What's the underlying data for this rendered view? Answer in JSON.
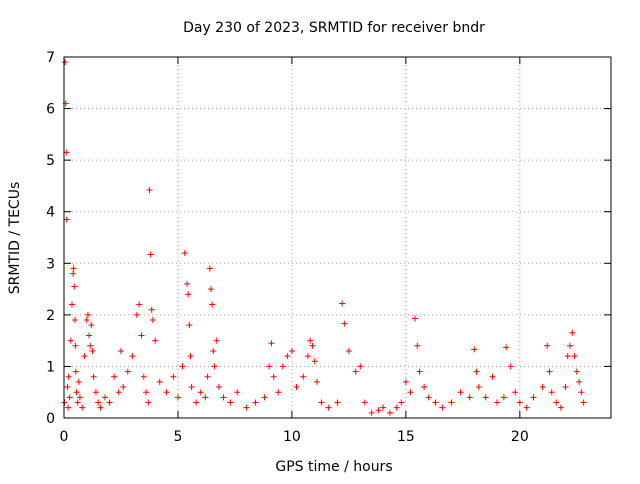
{
  "chart_data": {
    "type": "scatter",
    "title": "Day 230 of 2023, SRMTID for receiver bndr",
    "xlabel": "GPS time / hours",
    "ylabel": "SRMTID / TECUs",
    "xlim": [
      0,
      24
    ],
    "ylim": [
      0,
      7
    ],
    "xticks": [
      0,
      5,
      10,
      15,
      20
    ],
    "xtick_labels": [
      "0",
      "5",
      "10",
      "15",
      "20"
    ],
    "yticks": [
      0,
      1,
      2,
      3,
      4,
      5,
      6,
      7
    ],
    "ytick_labels": [
      "0",
      "1",
      "2",
      "3",
      "4",
      "5",
      "6",
      "7"
    ],
    "grid": true,
    "marker": "+",
    "series": [
      {
        "name": "bndr",
        "color": "#ff0000",
        "x": [
          0.02,
          0.05,
          0.08,
          0.1,
          0.12,
          0.15,
          0.18,
          0.2,
          0.25,
          0.3,
          0.35,
          0.4,
          0.42,
          0.45,
          0.48,
          0.5,
          0.52,
          0.55,
          0.6,
          0.65,
          0.7,
          0.8,
          0.9,
          1.0,
          1.05,
          1.1,
          1.15,
          1.2,
          1.25,
          1.3,
          1.4,
          1.5,
          1.6,
          1.8,
          2.0,
          2.2,
          2.4,
          2.5,
          2.6,
          2.8,
          3.0,
          3.2,
          3.3,
          3.4,
          3.5,
          3.6,
          3.7,
          3.75,
          3.8,
          3.85,
          3.9,
          4.0,
          4.2,
          4.5,
          4.8,
          5.0,
          5.2,
          5.3,
          5.4,
          5.45,
          5.5,
          5.55,
          5.6,
          5.8,
          6.0,
          6.2,
          6.3,
          6.4,
          6.45,
          6.5,
          6.55,
          6.6,
          6.7,
          6.8,
          7.0,
          7.3,
          7.6,
          8.0,
          8.4,
          8.8,
          9.0,
          9.1,
          9.2,
          9.4,
          9.6,
          9.8,
          10.0,
          10.2,
          10.5,
          10.7,
          10.8,
          10.9,
          11.0,
          11.1,
          11.3,
          11.6,
          12.0,
          12.2,
          12.3,
          12.5,
          12.8,
          13.0,
          13.2,
          13.5,
          13.8,
          14.0,
          14.3,
          14.6,
          14.8,
          15.0,
          15.2,
          15.4,
          15.5,
          15.6,
          15.8,
          16.0,
          16.3,
          16.6,
          17.0,
          17.4,
          17.8,
          18.0,
          18.1,
          18.2,
          18.5,
          18.8,
          19.0,
          19.3,
          19.4,
          19.6,
          19.8,
          20.0,
          20.3,
          20.6,
          21.0,
          21.2,
          21.3,
          21.4,
          21.6,
          21.8,
          22.0,
          22.1,
          22.2,
          22.3,
          22.4,
          22.5,
          22.6,
          22.7,
          22.8
        ],
        "values": [
          0.3,
          6.9,
          6.1,
          5.15,
          3.85,
          0.6,
          0.2,
          0.8,
          0.4,
          1.5,
          2.2,
          2.8,
          2.9,
          2.55,
          1.9,
          1.4,
          0.9,
          0.5,
          0.3,
          0.7,
          0.4,
          0.2,
          1.2,
          1.9,
          2.0,
          1.6,
          1.4,
          1.8,
          1.3,
          0.8,
          0.5,
          0.3,
          0.2,
          0.4,
          0.3,
          0.8,
          0.5,
          1.3,
          0.6,
          0.9,
          1.2,
          2.0,
          2.2,
          1.6,
          0.8,
          0.5,
          0.3,
          4.42,
          3.17,
          2.1,
          1.9,
          1.5,
          0.7,
          0.5,
          0.8,
          0.4,
          1.0,
          3.2,
          2.6,
          2.4,
          1.8,
          1.2,
          0.6,
          0.3,
          0.5,
          0.4,
          0.8,
          2.9,
          2.5,
          2.2,
          1.3,
          1.0,
          1.5,
          0.6,
          0.4,
          0.3,
          0.5,
          0.2,
          0.3,
          0.4,
          1.0,
          1.45,
          0.8,
          0.5,
          1.0,
          1.2,
          1.3,
          0.6,
          0.8,
          1.2,
          1.5,
          1.4,
          1.1,
          0.7,
          0.3,
          0.2,
          0.3,
          2.22,
          1.83,
          1.3,
          0.9,
          1.0,
          0.3,
          0.1,
          0.15,
          0.2,
          0.1,
          0.2,
          0.3,
          0.7,
          0.5,
          1.93,
          1.4,
          0.9,
          0.6,
          0.4,
          0.3,
          0.2,
          0.3,
          0.5,
          0.4,
          1.33,
          0.9,
          0.6,
          0.4,
          0.8,
          0.3,
          0.4,
          1.37,
          1.0,
          0.5,
          0.3,
          0.2,
          0.4,
          0.6,
          1.4,
          0.9,
          0.5,
          0.3,
          0.2,
          0.6,
          1.2,
          1.4,
          1.65,
          1.2,
          0.9,
          0.7,
          0.5,
          0.3
        ]
      }
    ]
  }
}
